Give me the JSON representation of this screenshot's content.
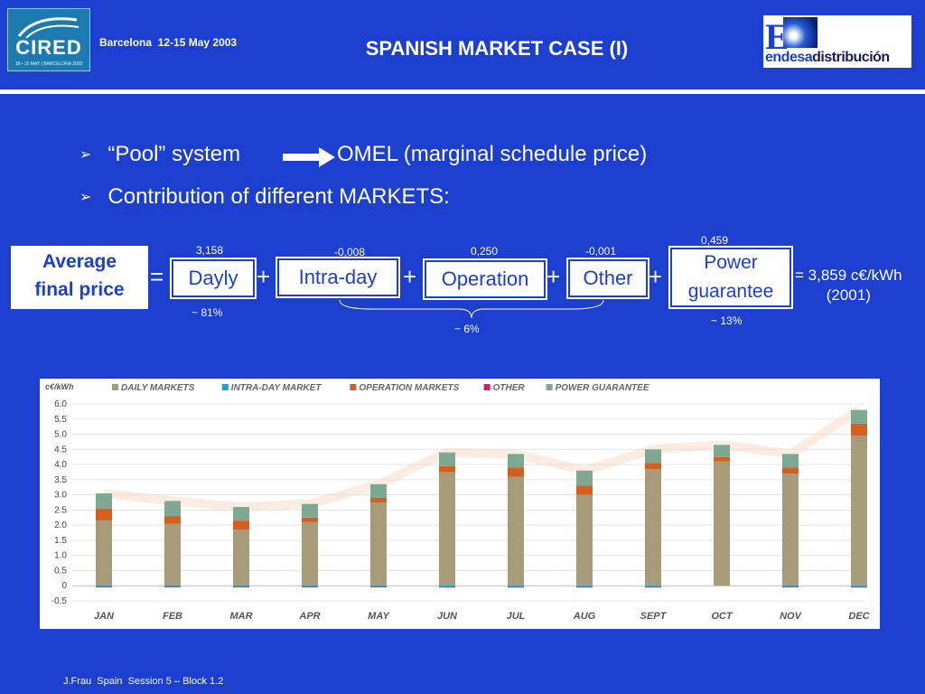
{
  "header": {
    "logo_left_text": "CIRED",
    "logo_left_sub": "18 • 15 MAY | BARCELONA 2003",
    "conference": "Barcelona  12-15 May 2003",
    "title": "SPANISH MARKET CASE (I)",
    "logo_right_letter": "E",
    "logo_right_word_1": "endesa",
    "logo_right_word_2": "distribución"
  },
  "bullets": [
    {
      "left": "“Pool” system",
      "right": "OMEL (marginal schedule price)"
    },
    {
      "left": "Contribution of different MARKETS:",
      "right": ""
    }
  ],
  "formula": {
    "result_label_1": "Average",
    "result_label_2": "final price",
    "equals": "=",
    "plus": "+",
    "terms": [
      {
        "label": "Dayly",
        "value": "3,158"
      },
      {
        "label": "Intra-day",
        "value": "-0,008"
      },
      {
        "label": "Operation",
        "value": "0,250"
      },
      {
        "label": "Other",
        "value": "-0,001"
      },
      {
        "label_1": "Power",
        "label_2": "guarantee",
        "value": "0,459"
      }
    ],
    "pct_daily": "~ 81%",
    "pct_group": "~ 6%",
    "pct_power": "~ 13%",
    "total_line_1": "= 3,859 c€/kWh",
    "total_line_2": "(2001)"
  },
  "chart_data": {
    "type": "bar",
    "stacked": true,
    "ylabel": "c€/kWh",
    "ylim": [
      -0.5,
      6.0
    ],
    "yticks": [
      "6.0",
      "5.5",
      "5.0",
      "4.5",
      "4.0",
      "3.5",
      "3.0",
      "2.5",
      "2.0",
      "1.5",
      "1.0",
      "0.5",
      "0",
      "-0.5"
    ],
    "grid": true,
    "legend_position": "top",
    "categories": [
      "JAN",
      "FEB",
      "MAR",
      "APR",
      "MAY",
      "JUN",
      "JUL",
      "AUG",
      "SEPT",
      "OCT",
      "NOV",
      "DEC"
    ],
    "series": [
      {
        "name": "DAILY MARKETS",
        "color": "#a89b7a",
        "values": [
          2.15,
          2.05,
          1.85,
          2.1,
          2.75,
          3.75,
          3.6,
          3.0,
          3.85,
          4.1,
          3.7,
          4.95
        ]
      },
      {
        "name": "INTRA-DAY MARKET",
        "color": "#1aa3d9",
        "values": [
          -0.02,
          -0.02,
          -0.02,
          -0.02,
          -0.02,
          -0.03,
          -0.03,
          -0.03,
          -0.03,
          0,
          -0.02,
          -0.03
        ]
      },
      {
        "name": "OPERATION MARKETS",
        "color": "#d45f1e",
        "values": [
          0.4,
          0.25,
          0.3,
          0.15,
          0.15,
          0.2,
          0.3,
          0.3,
          0.2,
          0.15,
          0.2,
          0.4
        ]
      },
      {
        "name": "OTHER",
        "color": "#e0147e",
        "values": [
          -0.01,
          -0.01,
          -0.01,
          -0.01,
          -0.01,
          -0.02,
          -0.02,
          -0.02,
          -0.02,
          0,
          -0.02,
          -0.02
        ]
      },
      {
        "name": "POWER GUARANTEE",
        "color": "#7fa892",
        "values": [
          0.5,
          0.5,
          0.45,
          0.45,
          0.45,
          0.45,
          0.45,
          0.5,
          0.45,
          0.4,
          0.45,
          0.45
        ]
      }
    ]
  },
  "footer": "J.Frau  Spain  Session 5 – Block 1.2"
}
